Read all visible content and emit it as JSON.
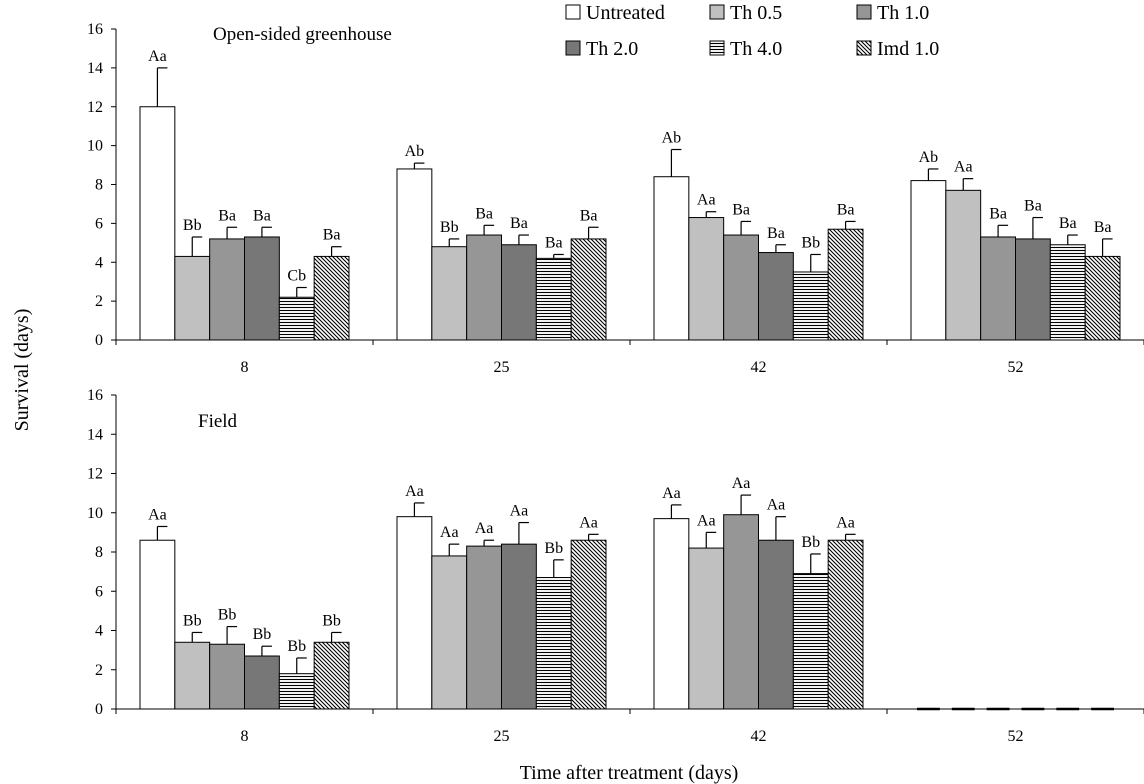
{
  "chart_data": {
    "type": "bar",
    "ylabel": "Survival (days)",
    "xlabel": "Time after treatment (days)",
    "categories": [
      "8",
      "25",
      "42",
      "52"
    ],
    "ylim": [
      0,
      16
    ],
    "yticks": [
      0,
      2,
      4,
      6,
      8,
      10,
      12,
      14,
      16
    ],
    "legend": {
      "placement": "top-right",
      "entries": [
        "Untreated",
        "Th 0.5",
        "Th 1.0",
        "Th 2.0",
        "Th 4.0",
        "Imd 1.0"
      ]
    },
    "series_style": [
      {
        "fill": "#ffffff",
        "pattern": "none"
      },
      {
        "fill": "#c0c0c0",
        "pattern": "none"
      },
      {
        "fill": "#969696",
        "pattern": "none"
      },
      {
        "fill": "#777777",
        "pattern": "none"
      },
      {
        "fill": "#ffffff",
        "pattern": "horizontal"
      },
      {
        "fill": "#ffffff",
        "pattern": "diagonal"
      }
    ],
    "panels": [
      {
        "title": "Open-sided greenhouse",
        "series": [
          {
            "name": "Untreated",
            "values": [
              12.0,
              8.8,
              8.4,
              8.2
            ],
            "errors": [
              2.0,
              0.3,
              1.4,
              0.6
            ],
            "labels": [
              "Aa",
              "Ab",
              "Ab",
              "Ab"
            ]
          },
          {
            "name": "Th 0.5",
            "values": [
              4.3,
              4.8,
              6.3,
              7.7
            ],
            "errors": [
              1.0,
              0.4,
              0.3,
              0.6
            ],
            "labels": [
              "Bb",
              "Bb",
              "Aa",
              "Aa"
            ]
          },
          {
            "name": "Th 1.0",
            "values": [
              5.2,
              5.4,
              5.4,
              5.3
            ],
            "errors": [
              0.6,
              0.5,
              0.7,
              0.6
            ],
            "labels": [
              "Ba",
              "Ba",
              "Ba",
              "Ba"
            ]
          },
          {
            "name": "Th 2.0",
            "values": [
              5.3,
              4.9,
              4.5,
              5.2
            ],
            "errors": [
              0.5,
              0.5,
              0.4,
              1.1
            ],
            "labels": [
              "Ba",
              "Ba",
              "Ba",
              "Ba"
            ]
          },
          {
            "name": "Th 4.0",
            "values": [
              2.2,
              4.2,
              3.5,
              4.9
            ],
            "errors": [
              0.5,
              0.2,
              0.9,
              0.5
            ],
            "labels": [
              "Cb",
              "Ba",
              "Bb",
              "Ba"
            ]
          },
          {
            "name": "Imd 1.0",
            "values": [
              4.3,
              5.2,
              5.7,
              4.3
            ],
            "errors": [
              0.5,
              0.6,
              0.4,
              0.9
            ],
            "labels": [
              "Ba",
              "Ba",
              "Ba",
              "Ba"
            ]
          }
        ]
      },
      {
        "title": "Field",
        "series": [
          {
            "name": "Untreated",
            "values": [
              8.6,
              9.8,
              9.7,
              0
            ],
            "errors": [
              0.7,
              0.7,
              0.7,
              0
            ],
            "labels": [
              "Aa",
              "Aa",
              "Aa",
              ""
            ]
          },
          {
            "name": "Th 0.5",
            "values": [
              3.4,
              7.8,
              8.2,
              0
            ],
            "errors": [
              0.5,
              0.6,
              0.8,
              0
            ],
            "labels": [
              "Bb",
              "Aa",
              "Aa",
              ""
            ]
          },
          {
            "name": "Th 1.0",
            "values": [
              3.3,
              8.3,
              9.9,
              0
            ],
            "errors": [
              0.9,
              0.3,
              1.0,
              0
            ],
            "labels": [
              "Bb",
              "Aa",
              "Aa",
              ""
            ]
          },
          {
            "name": "Th 2.0",
            "values": [
              2.7,
              8.4,
              8.6,
              0
            ],
            "errors": [
              0.5,
              1.1,
              1.2,
              0
            ],
            "labels": [
              "Bb",
              "Aa",
              "Aa",
              ""
            ]
          },
          {
            "name": "Th 4.0",
            "values": [
              1.8,
              6.7,
              6.9,
              0
            ],
            "errors": [
              0.8,
              0.9,
              1.0,
              0
            ],
            "labels": [
              "Bb",
              "Bb",
              "Bb",
              ""
            ]
          },
          {
            "name": "Imd 1.0",
            "values": [
              3.4,
              8.6,
              8.6,
              0
            ],
            "errors": [
              0.5,
              0.3,
              0.3,
              0
            ],
            "labels": [
              "Bb",
              "Aa",
              "Aa",
              ""
            ]
          }
        ]
      }
    ]
  }
}
